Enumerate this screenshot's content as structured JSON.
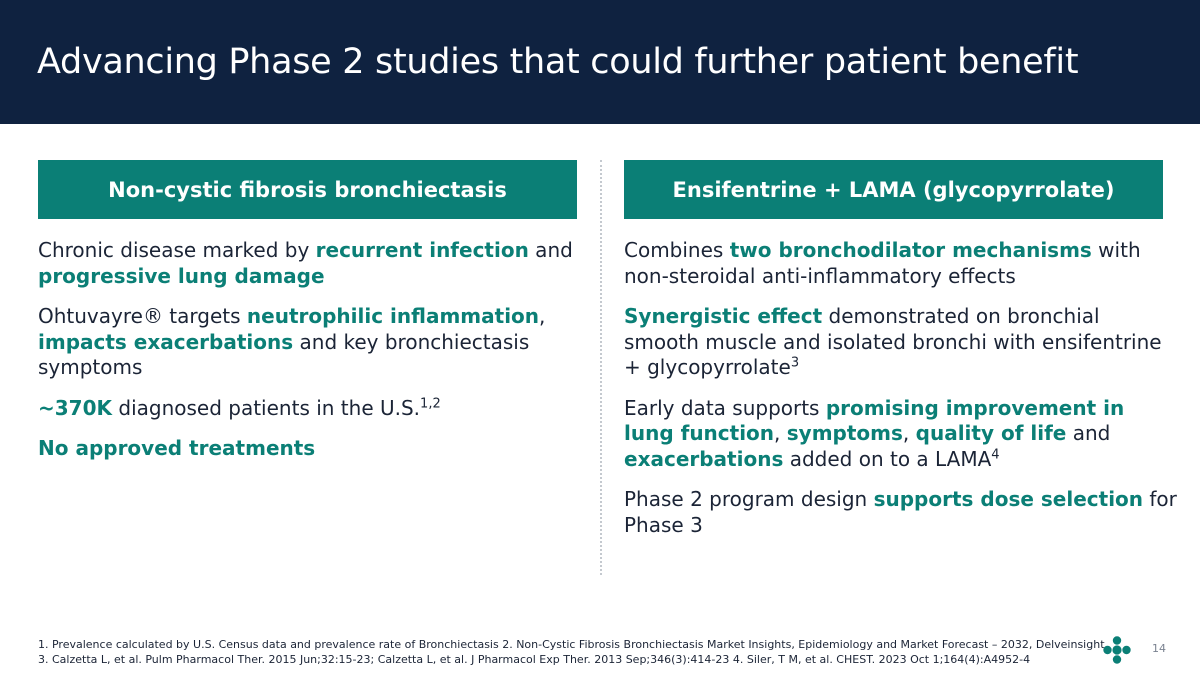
{
  "slide": {
    "title": "Advancing Phase 2 studies that could further patient benefit",
    "page_number": "14"
  },
  "left_column": {
    "header": "Non-cystic fibrosis bronchiectasis",
    "p1": {
      "t1": "Chronic disease marked by ",
      "h1": "recurrent infection",
      "t2": " and ",
      "h2": "progressive lung damage"
    },
    "p2": {
      "t1": "Ohtuvayre® targets ",
      "h1": "neutrophilic inflammation",
      "t2": ", ",
      "h2": "impacts exacerbations",
      "t3": " and key bronchiectasis symptoms"
    },
    "p3": {
      "h1": "~370K",
      "t1": " diagnosed patients in the U.S.",
      "sup": "1,2"
    },
    "p4": {
      "h1": "No approved treatments"
    }
  },
  "right_column": {
    "header": "Ensifentrine + LAMA (glycopyrrolate)",
    "p1": {
      "t1": "Combines ",
      "h1": "two bronchodilator mechanisms",
      "t2": " with non-steroidal anti-inflammatory effects"
    },
    "p2": {
      "h1": "Synergistic effect",
      "t1": " demonstrated on bronchial smooth muscle and isolated bronchi with ensifentrine + glycopyrrolate",
      "sup": "3"
    },
    "p3": {
      "t1": "Early data supports ",
      "h1": "promising improvement in lung function",
      "t2": ", ",
      "h2": "symptoms",
      "t3": ", ",
      "h3": "quality of life",
      "t4": " and ",
      "h4": "exacerbations",
      "t5": " added on to a LAMA",
      "sup": "4"
    },
    "p4": {
      "t1": "Phase 2 program design ",
      "h1": "supports dose selection",
      "t2": " for Phase 3"
    }
  },
  "footnotes": {
    "line1": "1. Prevalence calculated by U.S. Census data and prevalence rate of Bronchiectasis  2. Non-Cystic Fibrosis Bronchiectasis Market Insights, Epidemiology and Market Forecast – 2032, Delveinsight",
    "line2": "3. Calzetta L, et al. Pulm Pharmacol Ther. 2015 Jun;32:15-23; Calzetta L, et al. J Pharmacol Exp Ther. 2013 Sep;346(3):414-23  4. Siler, T M, et al. CHEST. 2023 Oct 1;164(4):A4952-4"
  },
  "colors": {
    "header_bg": "#0f2240",
    "accent_teal": "#0b7f76",
    "body_text": "#1b2436"
  },
  "icons": {
    "logo": "company-logo-icon"
  }
}
